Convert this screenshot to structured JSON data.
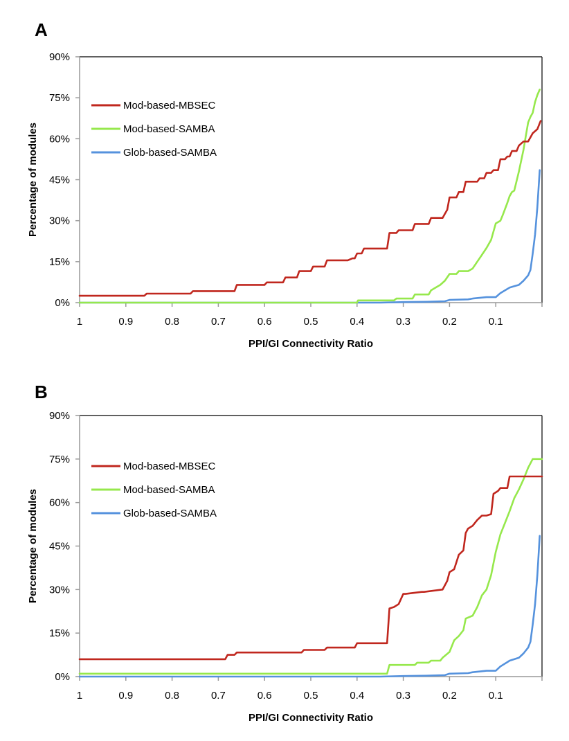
{
  "colors": {
    "red": "#c0271e",
    "green": "#96e84c",
    "blue": "#5592dd",
    "axis": "#999999",
    "frame": "#000000"
  },
  "chart_data": [
    {
      "panel": "A",
      "type": "line",
      "xlabel": "PPI/GI Connectivity Ratio",
      "ylabel": "Percentage of modules",
      "xlim": [
        1,
        0
      ],
      "ylim": [
        0,
        90
      ],
      "x_ticks": [
        "1",
        "0.9",
        "0.8",
        "0.7",
        "0.6",
        "0.5",
        "0.4",
        "0.3",
        "0.2",
        "0.1"
      ],
      "x_tick_values": [
        1,
        0.9,
        0.8,
        0.7,
        0.6,
        0.5,
        0.4,
        0.3,
        0.2,
        0.1
      ],
      "y_ticks": [
        "0%",
        "15%",
        "30%",
        "45%",
        "60%",
        "75%",
        "90%"
      ],
      "y_tick_values": [
        0,
        15,
        30,
        45,
        60,
        75,
        90
      ],
      "legend_position": "top-left",
      "series": [
        {
          "name": "Mod-based-MBSEC",
          "color": "#c0271e",
          "x": [
            1,
            0.86,
            0.855,
            0.76,
            0.755,
            0.665,
            0.66,
            0.6,
            0.595,
            0.56,
            0.555,
            0.53,
            0.525,
            0.5,
            0.495,
            0.47,
            0.465,
            0.42,
            0.41,
            0.405,
            0.4,
            0.39,
            0.385,
            0.335,
            0.33,
            0.315,
            0.31,
            0.28,
            0.275,
            0.245,
            0.24,
            0.215,
            0.21,
            0.205,
            0.2,
            0.185,
            0.18,
            0.17,
            0.165,
            0.14,
            0.135,
            0.125,
            0.12,
            0.11,
            0.105,
            0.095,
            0.09,
            0.08,
            0.075,
            0.07,
            0.065,
            0.055,
            0.05,
            0.04,
            0.03,
            0.02,
            0.01,
            0.003
          ],
          "y": [
            2.5,
            2.5,
            3.3,
            3.3,
            4.2,
            4.2,
            6.5,
            6.5,
            7.4,
            7.4,
            9.2,
            9.2,
            11.5,
            11.5,
            13.2,
            13.2,
            15.5,
            15.5,
            16.2,
            16.2,
            18.0,
            18.0,
            19.8,
            19.8,
            25.5,
            25.5,
            26.5,
            26.5,
            28.8,
            28.8,
            31.0,
            31.0,
            32.5,
            34.0,
            38.5,
            38.5,
            40.5,
            40.5,
            44.3,
            44.3,
            45.5,
            45.5,
            47.5,
            47.5,
            48.5,
            48.5,
            52.5,
            52.5,
            53.5,
            53.5,
            55.5,
            55.5,
            57.5,
            59.0,
            59.0,
            62.0,
            63.5,
            66.5
          ]
        },
        {
          "name": "Mod-based-SAMBA",
          "color": "#96e84c",
          "x": [
            1,
            0.4,
            0.398,
            0.32,
            0.315,
            0.28,
            0.275,
            0.245,
            0.24,
            0.23,
            0.22,
            0.21,
            0.2,
            0.185,
            0.18,
            0.16,
            0.15,
            0.14,
            0.13,
            0.12,
            0.11,
            0.1,
            0.09,
            0.085,
            0.075,
            0.07,
            0.065,
            0.06,
            0.05,
            0.04,
            0.035,
            0.03,
            0.025,
            0.02,
            0.015,
            0.01,
            0.005
          ],
          "y": [
            0,
            0,
            0.8,
            0.8,
            1.5,
            1.5,
            3.0,
            3.0,
            4.5,
            5.5,
            6.5,
            8.0,
            10.5,
            10.5,
            11.5,
            11.5,
            12.5,
            15.0,
            17.5,
            20.0,
            23.0,
            29.0,
            30.0,
            32.0,
            36.5,
            39.0,
            40.5,
            41.0,
            48.0,
            56.0,
            61.0,
            66.0,
            68.0,
            69.5,
            73.5,
            76.0,
            78.0
          ]
        },
        {
          "name": "Glob-based-SAMBA",
          "color": "#5592dd",
          "x": [
            1,
            0.35,
            0.3,
            0.25,
            0.21,
            0.2,
            0.16,
            0.15,
            0.12,
            0.1,
            0.09,
            0.075,
            0.07,
            0.06,
            0.05,
            0.04,
            0.03,
            0.025,
            0.02,
            0.015,
            0.01,
            0.005
          ],
          "y": [
            0,
            0,
            0.2,
            0.3,
            0.5,
            1.0,
            1.2,
            1.5,
            2.0,
            2.0,
            3.5,
            5.0,
            5.5,
            6.0,
            6.5,
            8.0,
            10.0,
            12.0,
            18.0,
            25.0,
            35.0,
            48.5
          ]
        }
      ]
    },
    {
      "panel": "B",
      "type": "line",
      "xlabel": "PPI/GI Connectivity Ratio",
      "ylabel": "Percentage of modules",
      "xlim": [
        1,
        0
      ],
      "ylim": [
        0,
        90
      ],
      "x_ticks": [
        "1",
        "0.9",
        "0.8",
        "0.7",
        "0.6",
        "0.5",
        "0.4",
        "0.3",
        "0.2",
        "0.1"
      ],
      "x_tick_values": [
        1,
        0.9,
        0.8,
        0.7,
        0.6,
        0.5,
        0.4,
        0.3,
        0.2,
        0.1
      ],
      "y_ticks": [
        "0%",
        "15%",
        "30%",
        "45%",
        "60%",
        "75%",
        "90%"
      ],
      "y_tick_values": [
        0,
        15,
        30,
        45,
        60,
        75,
        90
      ],
      "legend_position": "top-left",
      "series": [
        {
          "name": "Mod-based-MBSEC",
          "color": "#c0271e",
          "x": [
            1,
            0.685,
            0.68,
            0.665,
            0.66,
            0.52,
            0.515,
            0.47,
            0.465,
            0.405,
            0.4,
            0.335,
            0.33,
            0.32,
            0.31,
            0.3,
            0.295,
            0.26,
            0.255,
            0.215,
            0.205,
            0.2,
            0.19,
            0.18,
            0.17,
            0.165,
            0.16,
            0.15,
            0.14,
            0.13,
            0.12,
            0.11,
            0.105,
            0.095,
            0.09,
            0.075,
            0.07,
            0.05,
            0.0
          ],
          "y": [
            6.0,
            6.0,
            7.5,
            7.5,
            8.3,
            8.3,
            9.2,
            9.2,
            10.0,
            10.0,
            11.5,
            11.5,
            23.5,
            24.0,
            25.0,
            28.5,
            28.5,
            29.2,
            29.2,
            30.0,
            33.0,
            36.0,
            37.0,
            42.0,
            43.5,
            49.5,
            51.0,
            52.0,
            54.0,
            55.5,
            55.5,
            56.0,
            63.0,
            64.0,
            65.0,
            65.0,
            69.0,
            69.0,
            69.0
          ]
        },
        {
          "name": "Mod-based-SAMBA",
          "color": "#96e84c",
          "x": [
            1,
            0.335,
            0.33,
            0.275,
            0.27,
            0.245,
            0.24,
            0.22,
            0.215,
            0.2,
            0.19,
            0.18,
            0.17,
            0.165,
            0.15,
            0.14,
            0.13,
            0.12,
            0.11,
            0.1,
            0.09,
            0.08,
            0.07,
            0.06,
            0.05,
            0.04,
            0.03,
            0.02,
            0.0
          ],
          "y": [
            1.0,
            1.0,
            4.0,
            4.0,
            4.8,
            4.8,
            5.5,
            5.5,
            6.5,
            8.5,
            12.5,
            14.0,
            16.0,
            20.0,
            21.0,
            24.0,
            28.0,
            30.0,
            35.0,
            43.0,
            49.0,
            53.0,
            57.0,
            61.5,
            64.5,
            68.0,
            72.0,
            75.0,
            75.0
          ]
        },
        {
          "name": "Glob-based-SAMBA",
          "color": "#5592dd",
          "x": [
            1,
            0.35,
            0.3,
            0.25,
            0.21,
            0.2,
            0.16,
            0.15,
            0.12,
            0.1,
            0.09,
            0.075,
            0.07,
            0.06,
            0.05,
            0.04,
            0.03,
            0.025,
            0.02,
            0.015,
            0.01,
            0.005
          ],
          "y": [
            0,
            0,
            0.2,
            0.3,
            0.5,
            1.0,
            1.2,
            1.5,
            2.0,
            2.0,
            3.5,
            5.0,
            5.5,
            6.0,
            6.5,
            8.0,
            10.0,
            12.0,
            18.0,
            25.0,
            35.0,
            48.5
          ]
        }
      ]
    }
  ]
}
